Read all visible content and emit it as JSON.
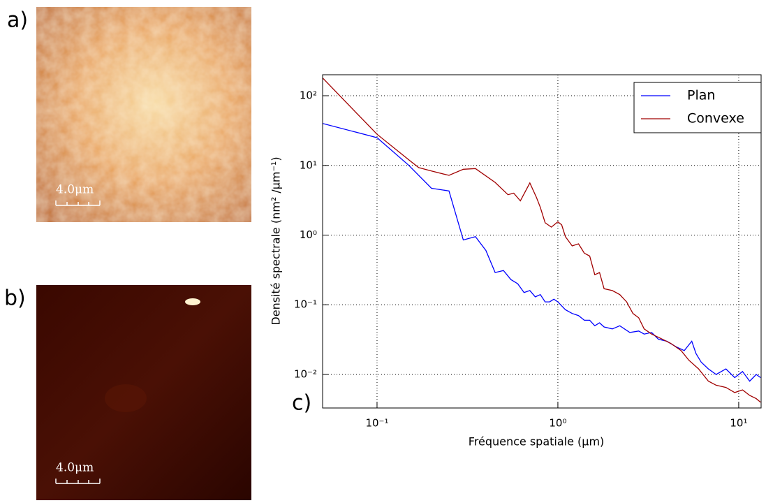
{
  "panels": [
    {
      "label": "a)",
      "scale_bar": "4.0μm"
    },
    {
      "label": "b)",
      "scale_bar": "4.0μm"
    }
  ],
  "chart_data": {
    "type": "line",
    "panel_label": "c)",
    "x_label": "Fréquence spatiale (μm)",
    "y_label": "Densité spectrale (nm² /μm⁻¹)",
    "x_scale": "log",
    "y_scale": "log",
    "grid": true,
    "legend": "upper right",
    "xlim": [
      0.05,
      13.3
    ],
    "ylim": [
      0.0033,
      200
    ],
    "xticks": [
      {
        "value": 0.1,
        "label": "10⁻¹"
      },
      {
        "value": 1,
        "label": "10⁰"
      },
      {
        "value": 10,
        "label": "10¹"
      }
    ],
    "yticks": [
      {
        "value": 0.01,
        "label": "10⁻²"
      },
      {
        "value": 0.1,
        "label": "10⁻¹"
      },
      {
        "value": 1,
        "label": "10⁰"
      },
      {
        "value": 10,
        "label": "10¹"
      },
      {
        "value": 100,
        "label": "10²"
      }
    ],
    "series": [
      {
        "name": "Plan",
        "color": "#0000ff",
        "x": [
          0.05,
          0.1,
          0.15,
          0.2,
          0.25,
          0.3,
          0.35,
          0.4,
          0.45,
          0.5,
          0.55,
          0.6,
          0.65,
          0.7,
          0.75,
          0.8,
          0.85,
          0.9,
          0.95,
          1.0,
          1.1,
          1.2,
          1.3,
          1.4,
          1.5,
          1.6,
          1.7,
          1.8,
          2.0,
          2.2,
          2.5,
          2.8,
          3.0,
          3.3,
          3.6,
          4.0,
          4.5,
          5.0,
          5.5,
          5.8,
          6.2,
          6.8,
          7.5,
          8.5,
          9.5,
          10.5,
          11.5,
          12.5,
          13.2
        ],
        "values": [
          40,
          25,
          10,
          4.7,
          4.3,
          0.85,
          0.95,
          0.6,
          0.29,
          0.31,
          0.23,
          0.2,
          0.15,
          0.16,
          0.13,
          0.14,
          0.11,
          0.11,
          0.12,
          0.11,
          0.085,
          0.075,
          0.07,
          0.06,
          0.06,
          0.05,
          0.055,
          0.048,
          0.045,
          0.05,
          0.04,
          0.042,
          0.038,
          0.04,
          0.032,
          0.03,
          0.025,
          0.022,
          0.03,
          0.02,
          0.015,
          0.012,
          0.01,
          0.012,
          0.009,
          0.011,
          0.008,
          0.01,
          0.009
        ]
      },
      {
        "name": "Convexe",
        "color": "#a00000",
        "x": [
          0.05,
          0.1,
          0.15,
          0.17,
          0.2,
          0.25,
          0.3,
          0.35,
          0.45,
          0.53,
          0.57,
          0.62,
          0.7,
          0.76,
          0.8,
          0.85,
          0.92,
          1.0,
          1.05,
          1.1,
          1.2,
          1.3,
          1.4,
          1.5,
          1.6,
          1.7,
          1.8,
          2.0,
          2.2,
          2.4,
          2.6,
          2.8,
          3.0,
          3.3,
          3.7,
          4.2,
          4.8,
          5.3,
          6.0,
          6.8,
          7.5,
          8.5,
          9.5,
          10.5,
          11.5,
          12.5,
          13.2
        ],
        "values": [
          180,
          28,
          12,
          9.3,
          8.3,
          7.2,
          8.8,
          9,
          5.7,
          3.8,
          4.0,
          3.1,
          5.6,
          3.5,
          2.5,
          1.5,
          1.3,
          1.55,
          1.4,
          0.95,
          0.7,
          0.75,
          0.55,
          0.5,
          0.27,
          0.29,
          0.17,
          0.16,
          0.14,
          0.11,
          0.075,
          0.065,
          0.045,
          0.038,
          0.033,
          0.028,
          0.022,
          0.016,
          0.012,
          0.008,
          0.007,
          0.0065,
          0.0055,
          0.006,
          0.005,
          0.0045,
          0.004
        ]
      }
    ]
  }
}
